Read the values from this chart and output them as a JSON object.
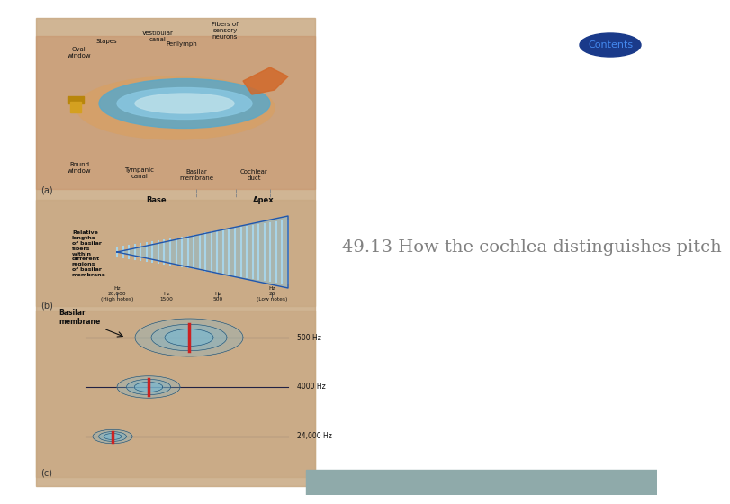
{
  "background_color": "#ffffff",
  "left_panel_bg": "#c8a882",
  "title_text": "49.13 How the cochlea distinguishes pitch",
  "title_color": "#808080",
  "title_fontsize": 14,
  "contents_text": "Contents",
  "contents_color": "#4488ee",
  "contents_ellipse_color": "#1a3a8a",
  "bottom_bar_color": "#8faaaa",
  "right_border_color": "#cccccc",
  "label_color": "#333333",
  "cochlea_tan": "#c8966e",
  "cochlea_blue": "#5ba8c8",
  "cochlea_orange": "#d2692a",
  "basilar_blue": "#87c0d8",
  "basilar_stripe": "#a8d4e8",
  "vibration_blue": "#7ab8d0",
  "vibration_red": "#cc2222"
}
